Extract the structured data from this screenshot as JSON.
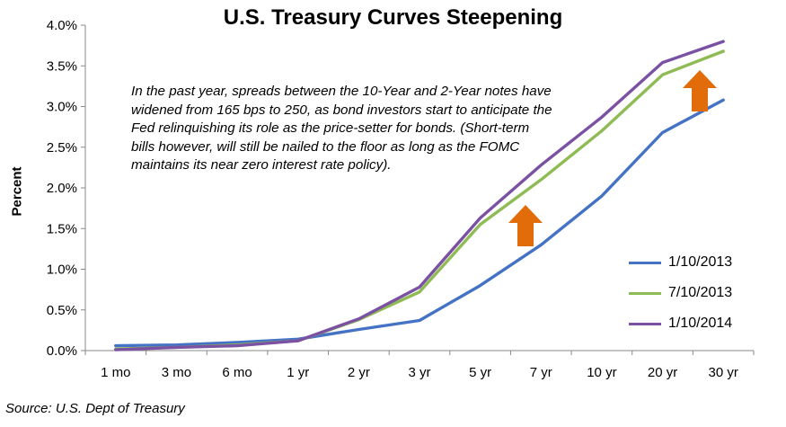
{
  "chart_data": {
    "type": "line",
    "title": "U.S. Treasury Curves Steepening",
    "ylabel": "Percent",
    "xlabel": "",
    "categories": [
      "1 mo",
      "3 mo",
      "6 mo",
      "1 yr",
      "2 yr",
      "3 yr",
      "5 yr",
      "7 yr",
      "10 yr",
      "20 yr",
      "30 yr"
    ],
    "ylim": [
      0,
      4.0
    ],
    "yticks": [
      "0.0%",
      "0.5%",
      "1.0%",
      "1.5%",
      "2.0%",
      "2.5%",
      "3.0%",
      "3.5%",
      "4.0%"
    ],
    "series": [
      {
        "name": "1/10/2013",
        "color": "#4472c4",
        "values": [
          0.06,
          0.07,
          0.1,
          0.14,
          0.26,
          0.37,
          0.8,
          1.3,
          1.9,
          2.68,
          3.08
        ]
      },
      {
        "name": "7/10/2013",
        "color": "#8fbb54",
        "values": [
          0.02,
          0.04,
          0.07,
          0.12,
          0.38,
          0.72,
          1.55,
          2.1,
          2.7,
          3.39,
          3.68
        ]
      },
      {
        "name": "1/10/2014",
        "color": "#7b52a3",
        "values": [
          0.01,
          0.04,
          0.06,
          0.12,
          0.39,
          0.78,
          1.63,
          2.28,
          2.87,
          3.54,
          3.8
        ]
      }
    ],
    "annotation": "In the past year, spreads between the 10-Year and 2-Year notes have widened from 165 bps to 250, as bond investors start to anticipate the Fed relinquishing its role as the price-setter for bonds. (Short-term bills however, will still be nailed to the floor as long as the FOMC maintains its near zero interest rate policy).",
    "source": "Source: U.S. Dept of Treasury",
    "legend_position": "bottom-right",
    "grid": false,
    "arrow_color": "#e36c0a"
  }
}
